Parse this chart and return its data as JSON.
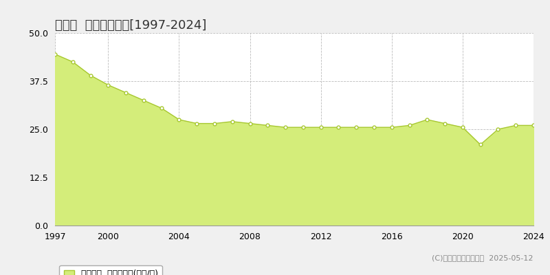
{
  "title": "斑鳩町  基準地価推移[1997-2024]",
  "years": [
    1997,
    1998,
    1999,
    2000,
    2001,
    2002,
    2003,
    2004,
    2005,
    2006,
    2007,
    2008,
    2009,
    2010,
    2011,
    2012,
    2013,
    2014,
    2015,
    2016,
    2017,
    2018,
    2019,
    2020,
    2021,
    2022,
    2023,
    2024
  ],
  "values": [
    44.5,
    42.5,
    39.0,
    36.5,
    34.5,
    32.5,
    30.5,
    27.5,
    26.5,
    26.5,
    27.0,
    26.5,
    26.0,
    25.5,
    25.5,
    25.5,
    25.5,
    25.5,
    25.5,
    25.5,
    26.0,
    27.5,
    26.5,
    25.5,
    21.0,
    25.0,
    26.0,
    26.0
  ],
  "fill_color": "#d4ed7a",
  "line_color": "#a8c832",
  "marker_face_color": "#ffffff",
  "marker_edge_color": "#a8c832",
  "bg_color": "#f0f0f0",
  "plot_bg_color": "#ffffff",
  "grid_color": "#bbbbbb",
  "ylim": [
    0,
    50
  ],
  "yticks": [
    0,
    12.5,
    25,
    37.5,
    50
  ],
  "xticks": [
    1997,
    2000,
    2004,
    2008,
    2012,
    2016,
    2020,
    2024
  ],
  "legend_label": "基準地価  平均坪単価(万円/坪)",
  "copyright_text": "(C)土地価格ドットコム  2025-05-12",
  "title_fontsize": 13,
  "tick_fontsize": 9,
  "legend_fontsize": 9,
  "copyright_fontsize": 8
}
